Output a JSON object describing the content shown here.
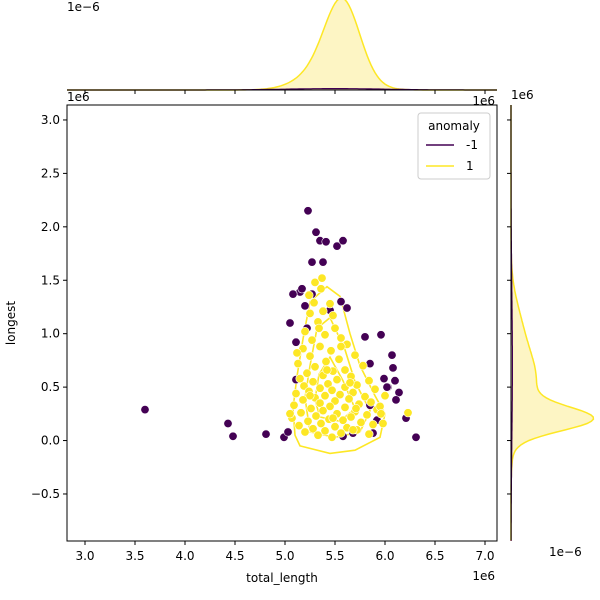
{
  "chart_data": {
    "type": "scatter",
    "subtype": "jointplot",
    "xlabel": "total_length",
    "ylabel": "longest",
    "x_tick_labels": [
      "3.0",
      "3.5",
      "4.0",
      "4.5",
      "5.0",
      "5.5",
      "6.0",
      "6.5",
      "7.0"
    ],
    "x_ticks": [
      3000000,
      3500000,
      4000000,
      4500000,
      5000000,
      5500000,
      6000000,
      6500000,
      7000000
    ],
    "y_tick_labels": [
      "−0.5",
      "0.0",
      "0.5",
      "1.0",
      "1.5",
      "2.0",
      "2.5",
      "3.0"
    ],
    "y_ticks": [
      -500000,
      0,
      500000,
      1000000,
      1500000,
      2000000,
      2500000,
      3000000
    ],
    "xlim": [
      2820000,
      7120000
    ],
    "ylim": [
      -940000,
      3140000
    ],
    "x_offset": "1e6",
    "y_offset": "1e6",
    "top_margin_offset": "1e−6",
    "top_margin_offset_right": "1e6",
    "right_margin_offset_top": "1e6",
    "right_margin_offset_bottom": "1e−6",
    "legend": {
      "title": "anomaly",
      "position": "upper right",
      "entries": [
        {
          "label": "-1",
          "color": "#440154"
        },
        {
          "label": "1",
          "color": "#fde725"
        }
      ]
    },
    "colors": {
      "anomaly_neg": "#440154",
      "anomaly_pos": "#fde725",
      "kde_fill": "#fdf3b5"
    },
    "series": [
      {
        "name": "-1",
        "color": "#440154",
        "points": [
          [
            3600000,
            290000
          ],
          [
            4430000,
            160000
          ],
          [
            4480000,
            40000
          ],
          [
            4810000,
            60000
          ],
          [
            4990000,
            30000
          ],
          [
            5030000,
            80000
          ],
          [
            5050000,
            1100000
          ],
          [
            5110000,
            920000
          ],
          [
            5150000,
            1390000
          ],
          [
            5170000,
            1420000
          ],
          [
            5200000,
            1260000
          ],
          [
            5230000,
            2150000
          ],
          [
            5270000,
            1670000
          ],
          [
            5310000,
            1950000
          ],
          [
            5350000,
            1870000
          ],
          [
            5380000,
            1670000
          ],
          [
            5410000,
            1860000
          ],
          [
            5450000,
            1220000
          ],
          [
            5520000,
            1820000
          ],
          [
            5580000,
            1870000
          ],
          [
            5270000,
            1370000
          ],
          [
            5220000,
            1050000
          ],
          [
            5560000,
            1300000
          ],
          [
            5620000,
            1240000
          ],
          [
            5800000,
            970000
          ],
          [
            5850000,
            720000
          ],
          [
            5960000,
            990000
          ],
          [
            6070000,
            800000
          ],
          [
            6080000,
            680000
          ],
          [
            6100000,
            560000
          ],
          [
            6140000,
            450000
          ],
          [
            6110000,
            380000
          ],
          [
            6210000,
            210000
          ],
          [
            6310000,
            30000
          ],
          [
            5850000,
            330000
          ],
          [
            5920000,
            190000
          ],
          [
            6030000,
            500000
          ],
          [
            6020000,
            500000
          ],
          [
            5880000,
            70000
          ],
          [
            5580000,
            40000
          ],
          [
            5680000,
            70000
          ],
          [
            5110000,
            570000
          ],
          [
            5080000,
            1370000
          ],
          [
            5990000,
            580000
          ]
        ]
      },
      {
        "name": "1",
        "color": "#fde725",
        "points": [
          [
            5300000,
            1480000
          ],
          [
            5370000,
            1520000
          ],
          [
            5360000,
            1420000
          ],
          [
            5240000,
            1360000
          ],
          [
            5290000,
            1290000
          ],
          [
            5450000,
            1280000
          ],
          [
            5380000,
            1210000
          ],
          [
            5250000,
            1190000
          ],
          [
            5480000,
            1170000
          ],
          [
            5330000,
            1110000
          ],
          [
            5500000,
            1050000
          ],
          [
            5200000,
            1020000
          ],
          [
            5400000,
            990000
          ],
          [
            5560000,
            960000
          ],
          [
            5270000,
            940000
          ],
          [
            5620000,
            900000
          ],
          [
            5350000,
            880000
          ],
          [
            5180000,
            860000
          ],
          [
            5460000,
            840000
          ],
          [
            5700000,
            800000
          ],
          [
            5250000,
            790000
          ],
          [
            5540000,
            760000
          ],
          [
            5410000,
            740000
          ],
          [
            5130000,
            720000
          ],
          [
            5780000,
            700000
          ],
          [
            5300000,
            690000
          ],
          [
            5600000,
            660000
          ],
          [
            5480000,
            650000
          ],
          [
            5220000,
            630000
          ],
          [
            5380000,
            610000
          ],
          [
            5660000,
            600000
          ],
          [
            5150000,
            580000
          ],
          [
            5520000,
            570000
          ],
          [
            5840000,
            560000
          ],
          [
            5280000,
            550000
          ],
          [
            5430000,
            530000
          ],
          [
            5720000,
            520000
          ],
          [
            5190000,
            510000
          ],
          [
            5600000,
            500000
          ],
          [
            5350000,
            490000
          ],
          [
            5900000,
            480000
          ],
          [
            5470000,
            470000
          ],
          [
            5240000,
            460000
          ],
          [
            5680000,
            450000
          ],
          [
            5110000,
            440000
          ],
          [
            5550000,
            430000
          ],
          [
            5400000,
            420000
          ],
          [
            5800000,
            410000
          ],
          [
            5300000,
            400000
          ],
          [
            5640000,
            390000
          ],
          [
            5180000,
            380000
          ],
          [
            5500000,
            370000
          ],
          [
            5860000,
            360000
          ],
          [
            5350000,
            350000
          ],
          [
            5740000,
            340000
          ],
          [
            5090000,
            330000
          ],
          [
            5450000,
            320000
          ],
          [
            5600000,
            310000
          ],
          [
            5260000,
            300000
          ],
          [
            5920000,
            290000
          ],
          [
            5380000,
            280000
          ],
          [
            5700000,
            270000
          ],
          [
            5160000,
            260000
          ],
          [
            5520000,
            250000
          ],
          [
            5820000,
            240000
          ],
          [
            5310000,
            230000
          ],
          [
            5660000,
            220000
          ],
          [
            5070000,
            210000
          ],
          [
            5440000,
            200000
          ],
          [
            5580000,
            190000
          ],
          [
            5230000,
            180000
          ],
          [
            5760000,
            170000
          ],
          [
            5360000,
            160000
          ],
          [
            5880000,
            150000
          ],
          [
            5140000,
            140000
          ],
          [
            5500000,
            130000
          ],
          [
            5620000,
            120000
          ],
          [
            5280000,
            110000
          ],
          [
            5720000,
            100000
          ],
          [
            5400000,
            90000
          ],
          [
            5200000,
            80000
          ],
          [
            5560000,
            70000
          ],
          [
            5840000,
            60000
          ],
          [
            5330000,
            50000
          ],
          [
            5680000,
            100000
          ],
          [
            5470000,
            30000
          ],
          [
            5950000,
            320000
          ],
          [
            6000000,
            420000
          ],
          [
            5960000,
            250000
          ],
          [
            6230000,
            260000
          ],
          [
            5980000,
            160000
          ],
          [
            5050000,
            250000
          ],
          [
            5120000,
            820000
          ],
          [
            5340000,
            1050000
          ],
          [
            5560000,
            880000
          ],
          [
            5420000,
            660000
          ],
          [
            5650000,
            540000
          ],
          [
            5250000,
            420000
          ],
          [
            5710000,
            300000
          ],
          [
            5480000,
            210000
          ]
        ]
      }
    ]
  }
}
